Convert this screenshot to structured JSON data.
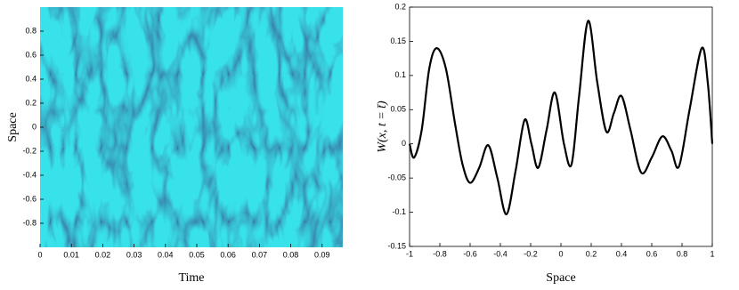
{
  "chart_data": [
    {
      "type": "heatmap",
      "xlabel": "Time",
      "ylabel": "Space",
      "xlim": [
        0,
        0.0966
      ],
      "ylim": [
        -1,
        1
      ],
      "xticks": [
        0,
        0.01,
        0.02,
        0.03,
        0.04,
        0.05,
        0.06,
        0.07,
        0.08,
        0.09
      ],
      "yticks": [
        -0.8,
        -0.6,
        -0.4,
        -0.2,
        0,
        0.2,
        0.4,
        0.6,
        0.8
      ]
    },
    {
      "type": "line",
      "xlabel": "Space",
      "ylabel": "W(x, t = t̄)",
      "xlim": [
        -1,
        1
      ],
      "ylim": [
        -0.15,
        0.2
      ],
      "xticks": [
        -1,
        -0.8,
        -0.6,
        -0.4,
        -0.2,
        0,
        0.2,
        0.4,
        0.6,
        0.8,
        1
      ],
      "yticks": [
        -0.15,
        -0.1,
        -0.05,
        0,
        0.05,
        0.1,
        0.15,
        0.2
      ],
      "color": "#000000",
      "x": [
        -1,
        -0.97,
        -0.92,
        -0.87,
        -0.82,
        -0.76,
        -0.7,
        -0.65,
        -0.6,
        -0.54,
        -0.48,
        -0.42,
        -0.36,
        -0.3,
        -0.24,
        -0.195,
        -0.15,
        -0.095,
        -0.04,
        0.02,
        0.07,
        0.12,
        0.18,
        0.24,
        0.3,
        0.35,
        0.4,
        0.46,
        0.53,
        0.6,
        0.67,
        0.73,
        0.78,
        0.85,
        0.93,
        0.97,
        1
      ],
      "values": [
        0,
        -0.02,
        0.02,
        0.11,
        0.14,
        0.11,
        0.03,
        -0.03,
        -0.057,
        -0.035,
        -0.002,
        -0.05,
        -0.103,
        -0.04,
        0.035,
        0,
        -0.035,
        0.02,
        0.075,
        0,
        -0.03,
        0.07,
        0.18,
        0.09,
        0.018,
        0.045,
        0.07,
        0.02,
        -0.042,
        -0.02,
        0.011,
        -0.01,
        -0.033,
        0.05,
        0.14,
        0.09,
        0
      ]
    }
  ]
}
